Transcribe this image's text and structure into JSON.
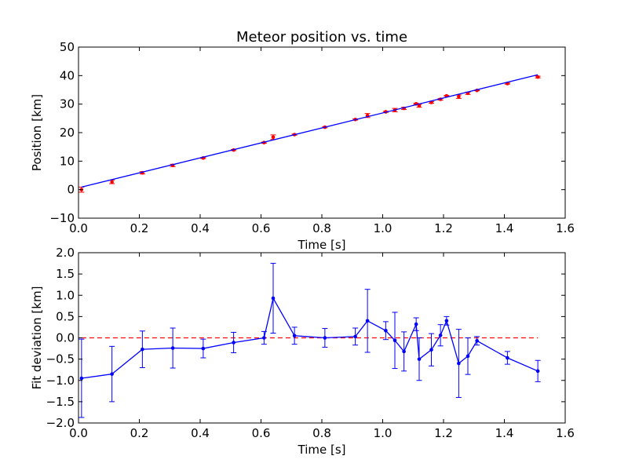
{
  "chart_data": [
    {
      "type": "line",
      "title": "Meteor position vs. time",
      "xlabel": "Time [s]",
      "ylabel": "Position [km]",
      "xlim": [
        0.0,
        1.6
      ],
      "ylim": [
        -10,
        50
      ],
      "xticks": [
        "0.0",
        "0.2",
        "0.4",
        "0.6",
        "0.8",
        "1.0",
        "1.2",
        "1.4",
        "1.6"
      ],
      "yticks": [
        "−10",
        "0",
        "10",
        "20",
        "30",
        "40",
        "50"
      ],
      "grid": false,
      "series": [
        {
          "style": "errorbar-points",
          "color": "#ff0000",
          "x": [
            0.01,
            0.11,
            0.21,
            0.31,
            0.41,
            0.51,
            0.61,
            0.64,
            0.71,
            0.81,
            0.91,
            0.95,
            1.01,
            1.04,
            1.07,
            1.11,
            1.12,
            1.16,
            1.19,
            1.21,
            1.25,
            1.28,
            1.31,
            1.41,
            1.51
          ],
          "y": [
            0.0,
            2.7,
            5.9,
            8.5,
            11.1,
            13.9,
            16.5,
            18.4,
            19.3,
            21.9,
            24.6,
            26.0,
            27.3,
            27.9,
            28.5,
            30.1,
            29.4,
            30.6,
            31.7,
            32.9,
            32.6,
            33.8,
            34.8,
            37.2,
            39.5
          ],
          "yerr": [
            0.9,
            0.6,
            0.4,
            0.4,
            0.2,
            0.2,
            0.2,
            0.8,
            0.2,
            0.2,
            0.2,
            0.7,
            0.2,
            0.6,
            0.4,
            0.2,
            0.5,
            0.3,
            0.3,
            0.1,
            0.6,
            0.4,
            0.1,
            0.2,
            0.3
          ]
        },
        {
          "style": "fit-line",
          "color": "#0000ff",
          "x": [
            0.01,
            1.51
          ],
          "y": [
            0.9,
            40.3
          ]
        }
      ]
    },
    {
      "type": "line",
      "title": "",
      "xlabel": "Time [s]",
      "ylabel": "Fit deviation [km]",
      "xlim": [
        0.0,
        1.6
      ],
      "ylim": [
        -2.0,
        2.0
      ],
      "xticks": [
        "0.0",
        "0.2",
        "0.4",
        "0.6",
        "0.8",
        "1.0",
        "1.2",
        "1.4",
        "1.6"
      ],
      "yticks": [
        "−2.0",
        "−1.5",
        "−1.0",
        "−0.5",
        "0.0",
        "0.5",
        "1.0",
        "1.5",
        "2.0"
      ],
      "grid": false,
      "reference_line": {
        "y": 0.0,
        "x_range": [
          0.01,
          1.51
        ],
        "color": "#ff0000",
        "style": "dashed"
      },
      "series": [
        {
          "style": "errorbar-line",
          "color": "#0000ff",
          "x": [
            0.01,
            0.11,
            0.21,
            0.31,
            0.41,
            0.51,
            0.61,
            0.64,
            0.71,
            0.81,
            0.91,
            0.95,
            1.01,
            1.04,
            1.07,
            1.11,
            1.12,
            1.16,
            1.19,
            1.21,
            1.25,
            1.28,
            1.31,
            1.41,
            1.51
          ],
          "y": [
            -0.95,
            -0.85,
            -0.27,
            -0.24,
            -0.25,
            -0.11,
            0.0,
            0.93,
            0.05,
            0.0,
            0.03,
            0.4,
            0.17,
            -0.06,
            -0.32,
            0.32,
            -0.5,
            -0.28,
            0.06,
            0.4,
            -0.6,
            -0.43,
            -0.07,
            -0.47,
            -0.78
          ],
          "yerr": [
            0.92,
            0.65,
            0.43,
            0.47,
            0.22,
            0.24,
            0.15,
            0.82,
            0.2,
            0.22,
            0.2,
            0.74,
            0.21,
            0.66,
            0.46,
            0.15,
            0.5,
            0.38,
            0.25,
            0.1,
            0.8,
            0.43,
            0.1,
            0.15,
            0.25
          ]
        }
      ]
    }
  ]
}
